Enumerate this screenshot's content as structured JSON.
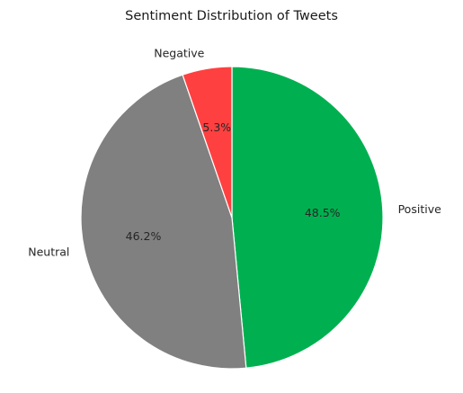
{
  "chart_data": {
    "type": "pie",
    "title": "Sentiment Distribution of Tweets",
    "slices": [
      {
        "label": "Positive",
        "value": 48.5,
        "pct_label": "48.5%",
        "color": "#00b050"
      },
      {
        "label": "Neutral",
        "value": 46.2,
        "pct_label": "46.2%",
        "color": "#808080"
      },
      {
        "label": "Negative",
        "value": 5.3,
        "pct_label": "5.3%",
        "color": "#ff4040"
      }
    ],
    "start_angle_deg": 90,
    "direction": "clockwise",
    "slice_edge_color": "#ffffff"
  }
}
